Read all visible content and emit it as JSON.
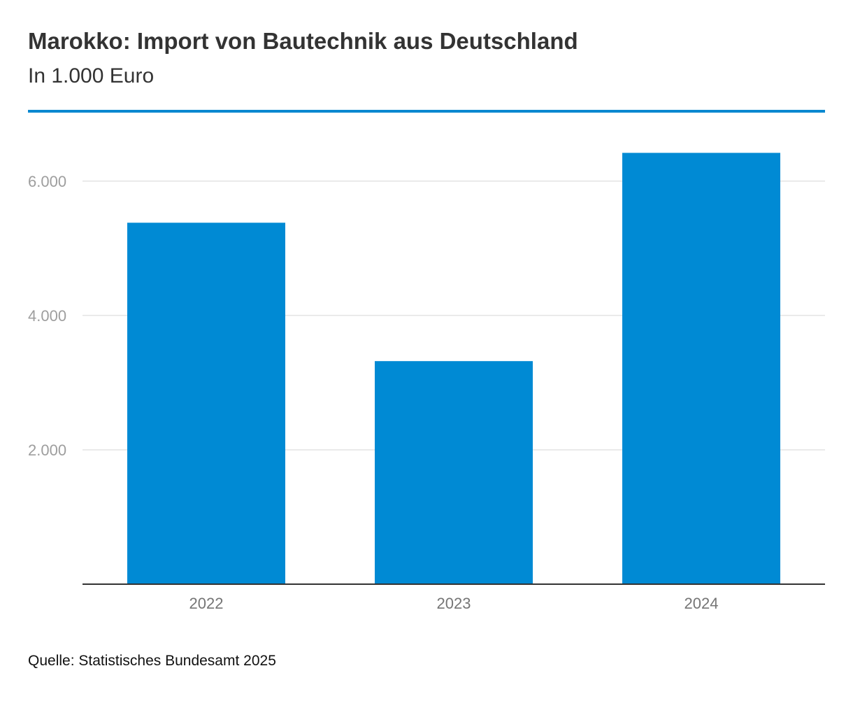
{
  "colors": {
    "bar": "#008AD4",
    "rule": "#0A88D0",
    "grid": "#e3e3e3",
    "axis": "#333333"
  },
  "chart_data": {
    "type": "bar",
    "title": "Marokko: Import von Bautechnik aus Deutschland",
    "subtitle": "In 1.000 Euro",
    "categories": [
      "2022",
      "2023",
      "2024"
    ],
    "values": [
      5380,
      3320,
      6420
    ],
    "ylim": [
      0,
      6800
    ],
    "yticks": [
      2000,
      4000,
      6000
    ],
    "ytick_labels": [
      "2.000",
      "4.000",
      "6.000"
    ],
    "grid": true,
    "legend": "none",
    "xlabel": "",
    "ylabel": ""
  },
  "source": "Quelle: Statistisches Bundesamt 2025"
}
